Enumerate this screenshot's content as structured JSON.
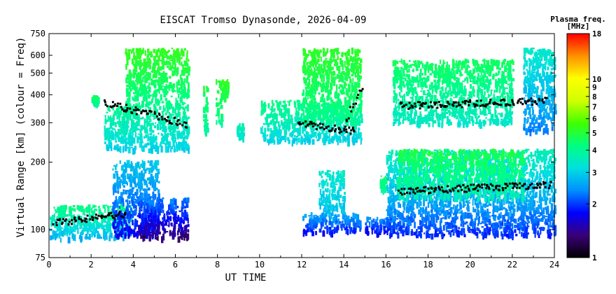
{
  "chart_data": {
    "type": "heatmap",
    "title": "EISCAT Tromso Dynasonde, 2026-04-09",
    "xlabel": "UT TIME",
    "ylabel": "Virtual Range [km] (colour = Freq)",
    "x_range": [
      0,
      24
    ],
    "x_ticks": [
      0,
      2,
      4,
      6,
      8,
      10,
      12,
      14,
      16,
      18,
      20,
      22,
      24
    ],
    "y_scale": "log",
    "y_range": [
      75,
      750
    ],
    "y_ticks": [
      75,
      100,
      200,
      300,
      400,
      500,
      600,
      750
    ],
    "colorbar": {
      "title_line1": "Plasma freq.",
      "title_line2": "[MHz]",
      "scale": "log",
      "range": [
        1,
        18
      ],
      "ticks": [
        1,
        2,
        3,
        4,
        5,
        6,
        7,
        8,
        9,
        10,
        18
      ],
      "colors": [
        "#000000",
        "#3a007a",
        "#0000ff",
        "#0090ff",
        "#00e0e0",
        "#00ff80",
        "#40ff00",
        "#d0ff00",
        "#ffff00",
        "#ff9000",
        "#ff0000"
      ]
    },
    "regions": [
      {
        "x0": 0.0,
        "x1": 3.9,
        "y0": 92,
        "y1": 130,
        "f0": 2.6,
        "f1": 4.2
      },
      {
        "x0": 2.0,
        "x1": 2.3,
        "y0": 370,
        "y1": 400,
        "f0": 3.8,
        "f1": 4.6
      },
      {
        "x0": 2.6,
        "x1": 6.6,
        "y0": 230,
        "y1": 360,
        "f0": 3.0,
        "f1": 4.0
      },
      {
        "x0": 3.6,
        "x1": 6.6,
        "y0": 360,
        "y1": 650,
        "f0": 4.0,
        "f1": 5.3
      },
      {
        "x0": 3.0,
        "x1": 5.2,
        "y0": 95,
        "y1": 205,
        "f0": 1.7,
        "f1": 2.9
      },
      {
        "x0": 4.2,
        "x1": 6.6,
        "y0": 93,
        "y1": 140,
        "f0": 1.3,
        "f1": 2.3
      },
      {
        "x0": 7.3,
        "x1": 7.5,
        "y0": 270,
        "y1": 440,
        "f0": 3.8,
        "f1": 4.8
      },
      {
        "x0": 7.9,
        "x1": 8.2,
        "y0": 300,
        "y1": 470,
        "f0": 4.0,
        "f1": 5.0
      },
      {
        "x0": 8.2,
        "x1": 8.5,
        "y0": 390,
        "y1": 470,
        "f0": 4.6,
        "f1": 5.4
      },
      {
        "x0": 8.9,
        "x1": 9.2,
        "y0": 260,
        "y1": 300,
        "f0": 3.2,
        "f1": 3.8
      },
      {
        "x0": 10.0,
        "x1": 14.8,
        "y0": 250,
        "y1": 380,
        "f0": 3.0,
        "f1": 4.2
      },
      {
        "x0": 12.0,
        "x1": 14.8,
        "y0": 300,
        "y1": 650,
        "f0": 4.0,
        "f1": 5.2
      },
      {
        "x0": 12.0,
        "x1": 14.8,
        "y0": 98,
        "y1": 120,
        "f0": 1.8,
        "f1": 2.6
      },
      {
        "x0": 12.8,
        "x1": 14.0,
        "y0": 120,
        "y1": 185,
        "f0": 2.8,
        "f1": 3.4
      },
      {
        "x0": 15.0,
        "x1": 16.3,
        "y0": 98,
        "y1": 115,
        "f0": 1.7,
        "f1": 2.4
      },
      {
        "x0": 15.7,
        "x1": 16.0,
        "y0": 150,
        "y1": 175,
        "f0": 3.8,
        "f1": 4.5
      },
      {
        "x0": 16.0,
        "x1": 24.0,
        "y0": 95,
        "y1": 230,
        "f0": 1.9,
        "f1": 3.6
      },
      {
        "x0": 16.5,
        "x1": 22.5,
        "y0": 140,
        "y1": 230,
        "f0": 3.5,
        "f1": 4.8
      },
      {
        "x0": 16.3,
        "x1": 22.0,
        "y0": 300,
        "y1": 580,
        "f0": 3.4,
        "f1": 4.6
      },
      {
        "x0": 22.5,
        "x1": 24.0,
        "y0": 280,
        "y1": 650,
        "f0": 2.3,
        "f1": 3.4
      }
    ],
    "trace_segments": [
      {
        "x0": 2.6,
        "x1": 6.5,
        "y0": 370,
        "y1": 298
      },
      {
        "x0": 0.2,
        "x1": 3.6,
        "y0": 108,
        "y1": 118
      },
      {
        "x0": 11.8,
        "x1": 14.5,
        "y0": 300,
        "y1": 278
      },
      {
        "x0": 14.0,
        "x1": 14.8,
        "y0": 290,
        "y1": 440
      },
      {
        "x0": 16.6,
        "x1": 23.6,
        "y0": 360,
        "y1": 380
      },
      {
        "x0": 16.6,
        "x1": 23.8,
        "y0": 150,
        "y1": 160
      }
    ]
  }
}
